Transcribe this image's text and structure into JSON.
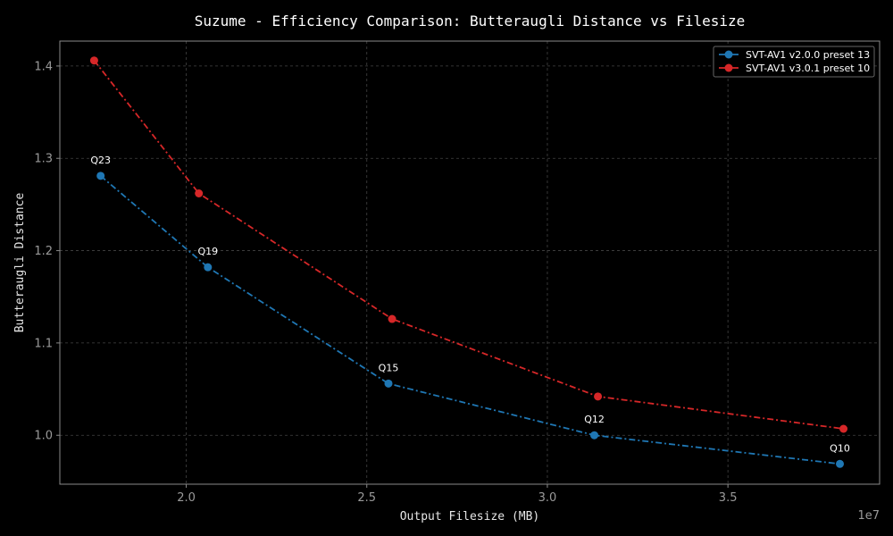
{
  "chart_data": {
    "type": "line",
    "title": "Suzume - Efficiency Comparison: Butteraugli Distance vs Filesize",
    "xlabel": "Output Filesize (MB)",
    "ylabel": "Butteraugli Distance",
    "x_offset_label": "1e7",
    "xlim": [
      16500000,
      39200000
    ],
    "ylim": [
      0.947,
      1.427
    ],
    "xticks": [
      20000000,
      25000000,
      30000000,
      35000000
    ],
    "xtick_labels": [
      "2.0",
      "2.5",
      "3.0",
      "3.5"
    ],
    "yticks": [
      1.0,
      1.1,
      1.2,
      1.3,
      1.4
    ],
    "ytick_labels": [
      "1.0",
      "1.1",
      "1.2",
      "1.3",
      "1.4"
    ],
    "grid": true,
    "legend_position": "top-right",
    "series": [
      {
        "name": "SVT-AV1 v2.0.0 preset 13",
        "color": "#1f77b4",
        "x": [
          17630000,
          20600000,
          25600000,
          31300000,
          38100000
        ],
        "y": [
          1.281,
          1.182,
          1.056,
          1.0,
          0.969
        ],
        "labels": [
          "Q23",
          "Q19",
          "Q15",
          "Q12",
          "Q10"
        ]
      },
      {
        "name": "SVT-AV1 v3.0.1 preset 10",
        "color": "#d62728",
        "x": [
          17450000,
          20350000,
          25700000,
          31400000,
          38200000
        ],
        "y": [
          1.406,
          1.262,
          1.126,
          1.042,
          1.007
        ]
      }
    ]
  }
}
